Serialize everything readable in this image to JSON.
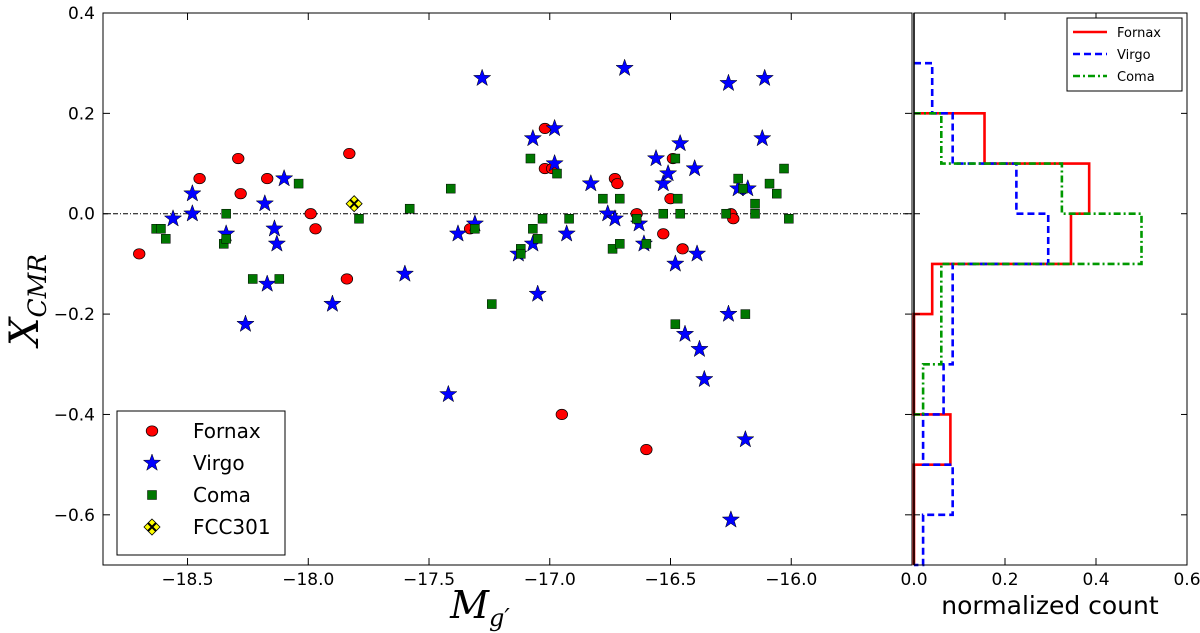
{
  "chart_data": [
    {
      "type": "scatter",
      "ylabel": "X",
      "ylabel_sub": "CMR",
      "xlabel": "M",
      "xlabel_sub": "g′",
      "xlim": [
        -18.85,
        -15.5
      ],
      "ylim": [
        -0.7,
        0.4
      ],
      "xticks": [
        -18.5,
        -18.0,
        -17.5,
        -17.0,
        -16.5,
        -16.0
      ],
      "xtick_labels": [
        "−18.5",
        "−18.0",
        "−17.5",
        "−17.0",
        "−16.5",
        "−16.0"
      ],
      "yticks": [
        0.4,
        0.2,
        0.0,
        -0.2,
        -0.4,
        -0.6
      ],
      "ytick_labels": [
        "0.4",
        "0.2",
        "0.0",
        "−0.2",
        "−0.4",
        "−0.6"
      ],
      "reference_line_y": 0.0,
      "legend_position": "lower-left",
      "series": [
        {
          "name": "Fornax",
          "marker": "circle",
          "color": "#ff0000",
          "points": [
            [
              -18.7,
              -0.08
            ],
            [
              -18.45,
              0.07
            ],
            [
              -18.29,
              0.11
            ],
            [
              -18.28,
              0.04
            ],
            [
              -18.17,
              0.07
            ],
            [
              -17.99,
              0.0
            ],
            [
              -17.97,
              -0.03
            ],
            [
              -17.84,
              -0.13
            ],
            [
              -17.83,
              0.12
            ],
            [
              -17.33,
              -0.03
            ],
            [
              -17.02,
              0.17
            ],
            [
              -17.02,
              0.09
            ],
            [
              -16.99,
              0.09
            ],
            [
              -16.95,
              -0.4
            ],
            [
              -16.73,
              0.07
            ],
            [
              -16.72,
              0.06
            ],
            [
              -16.64,
              0.0
            ],
            [
              -16.6,
              -0.47
            ],
            [
              -16.53,
              -0.04
            ],
            [
              -16.5,
              0.03
            ],
            [
              -16.49,
              0.11
            ],
            [
              -16.45,
              -0.07
            ],
            [
              -16.25,
              0.0
            ],
            [
              -16.24,
              -0.01
            ]
          ]
        },
        {
          "name": "Virgo",
          "marker": "star",
          "color": "#0000ff",
          "points": [
            [
              -18.56,
              -0.01
            ],
            [
              -18.48,
              0.04
            ],
            [
              -18.48,
              0.0
            ],
            [
              -18.34,
              -0.04
            ],
            [
              -18.26,
              -0.22
            ],
            [
              -18.18,
              0.02
            ],
            [
              -18.17,
              -0.14
            ],
            [
              -18.14,
              -0.03
            ],
            [
              -18.13,
              -0.06
            ],
            [
              -18.1,
              0.07
            ],
            [
              -17.9,
              -0.18
            ],
            [
              -17.6,
              -0.12
            ],
            [
              -17.42,
              -0.36
            ],
            [
              -17.38,
              -0.04
            ],
            [
              -17.31,
              -0.02
            ],
            [
              -17.28,
              0.27
            ],
            [
              -17.13,
              -0.08
            ],
            [
              -17.07,
              0.15
            ],
            [
              -17.07,
              -0.06
            ],
            [
              -17.05,
              -0.16
            ],
            [
              -16.98,
              0.17
            ],
            [
              -16.98,
              0.1
            ],
            [
              -16.93,
              -0.04
            ],
            [
              -16.83,
              0.06
            ],
            [
              -16.76,
              0.0
            ],
            [
              -16.73,
              -0.01
            ],
            [
              -16.69,
              0.29
            ],
            [
              -16.63,
              -0.02
            ],
            [
              -16.61,
              -0.06
            ],
            [
              -16.56,
              0.11
            ],
            [
              -16.53,
              0.06
            ],
            [
              -16.51,
              0.08
            ],
            [
              -16.48,
              -0.1
            ],
            [
              -16.46,
              0.14
            ],
            [
              -16.44,
              -0.24
            ],
            [
              -16.4,
              0.09
            ],
            [
              -16.39,
              -0.08
            ],
            [
              -16.38,
              -0.27
            ],
            [
              -16.36,
              -0.33
            ],
            [
              -16.26,
              0.26
            ],
            [
              -16.26,
              -0.2
            ],
            [
              -16.25,
              -0.61
            ],
            [
              -16.22,
              0.05
            ],
            [
              -16.19,
              -0.45
            ],
            [
              -16.18,
              0.05
            ],
            [
              -16.12,
              0.15
            ],
            [
              -16.11,
              0.27
            ]
          ]
        },
        {
          "name": "Coma",
          "marker": "square",
          "color": "#007700",
          "points": [
            [
              -18.63,
              -0.03
            ],
            [
              -18.61,
              -0.03
            ],
            [
              -18.59,
              -0.05
            ],
            [
              -18.35,
              -0.06
            ],
            [
              -18.34,
              0.0
            ],
            [
              -18.34,
              -0.05
            ],
            [
              -18.23,
              -0.13
            ],
            [
              -18.12,
              -0.13
            ],
            [
              -18.04,
              0.06
            ],
            [
              -17.79,
              -0.01
            ],
            [
              -17.58,
              0.01
            ],
            [
              -17.41,
              0.05
            ],
            [
              -17.31,
              -0.03
            ],
            [
              -17.24,
              -0.18
            ],
            [
              -17.12,
              -0.07
            ],
            [
              -17.12,
              -0.08
            ],
            [
              -17.08,
              0.11
            ],
            [
              -17.07,
              -0.03
            ],
            [
              -17.05,
              -0.05
            ],
            [
              -17.03,
              -0.01
            ],
            [
              -16.97,
              0.08
            ],
            [
              -16.92,
              -0.01
            ],
            [
              -16.78,
              0.03
            ],
            [
              -16.74,
              -0.07
            ],
            [
              -16.71,
              -0.06
            ],
            [
              -16.71,
              0.03
            ],
            [
              -16.64,
              -0.01
            ],
            [
              -16.6,
              -0.06
            ],
            [
              -16.53,
              0.0
            ],
            [
              -16.48,
              0.11
            ],
            [
              -16.48,
              -0.22
            ],
            [
              -16.47,
              0.03
            ],
            [
              -16.46,
              0.0
            ],
            [
              -16.27,
              0.0
            ],
            [
              -16.22,
              0.07
            ],
            [
              -16.2,
              0.05
            ],
            [
              -16.19,
              -0.2
            ],
            [
              -16.15,
              0.02
            ],
            [
              -16.15,
              0.0
            ],
            [
              -16.09,
              0.06
            ],
            [
              -16.06,
              0.04
            ],
            [
              -16.03,
              0.09
            ],
            [
              -16.01,
              -0.01
            ]
          ]
        },
        {
          "name": "FCC301",
          "marker": "diamond",
          "color": "#ffff00",
          "points": [
            [
              -17.81,
              0.02
            ]
          ]
        }
      ]
    },
    {
      "type": "histogram",
      "xlabel": "normalized count",
      "xlim": [
        0.0,
        0.6
      ],
      "ylim": [
        -0.7,
        0.4
      ],
      "xticks": [
        0.0,
        0.2,
        0.4,
        0.6
      ],
      "xtick_labels": [
        "0.0",
        "0.2",
        "0.4",
        "0.6"
      ],
      "orientation": "horizontal",
      "legend_position": "top-right",
      "series": [
        {
          "name": "Fornax",
          "color": "#ff0000",
          "linestyle": "solid",
          "bins": [
            [
              0.2,
              0.1,
              0.155
            ],
            [
              0.1,
              0.0,
              0.385
            ],
            [
              0.0,
              -0.1,
              0.345
            ],
            [
              -0.1,
              -0.2,
              0.04
            ],
            [
              -0.2,
              -0.3,
              0.0
            ],
            [
              -0.3,
              -0.4,
              0.0
            ],
            [
              -0.4,
              -0.5,
              0.08
            ],
            [
              -0.5,
              -0.6,
              0.0
            ],
            [
              -0.6,
              -0.7,
              0.0
            ]
          ]
        },
        {
          "name": "Virgo",
          "color": "#0000ff",
          "linestyle": "dashed",
          "bins": [
            [
              0.3,
              0.2,
              0.04
            ],
            [
              0.2,
              0.1,
              0.085
            ],
            [
              0.1,
              0.0,
              0.225
            ],
            [
              0.0,
              -0.1,
              0.295
            ],
            [
              -0.1,
              -0.2,
              0.085
            ],
            [
              -0.2,
              -0.3,
              0.085
            ],
            [
              -0.3,
              -0.4,
              0.065
            ],
            [
              -0.4,
              -0.5,
              0.02
            ],
            [
              -0.5,
              -0.6,
              0.085
            ],
            [
              -0.6,
              -0.7,
              0.02
            ]
          ]
        },
        {
          "name": "Coma",
          "color": "#009900",
          "linestyle": "dashdot",
          "bins": [
            [
              0.2,
              0.1,
              0.06
            ],
            [
              0.1,
              0.0,
              0.325
            ],
            [
              0.0,
              -0.1,
              0.5
            ],
            [
              -0.1,
              -0.2,
              0.06
            ],
            [
              -0.2,
              -0.3,
              0.06
            ],
            [
              -0.3,
              -0.4,
              0.02
            ]
          ]
        }
      ]
    }
  ]
}
